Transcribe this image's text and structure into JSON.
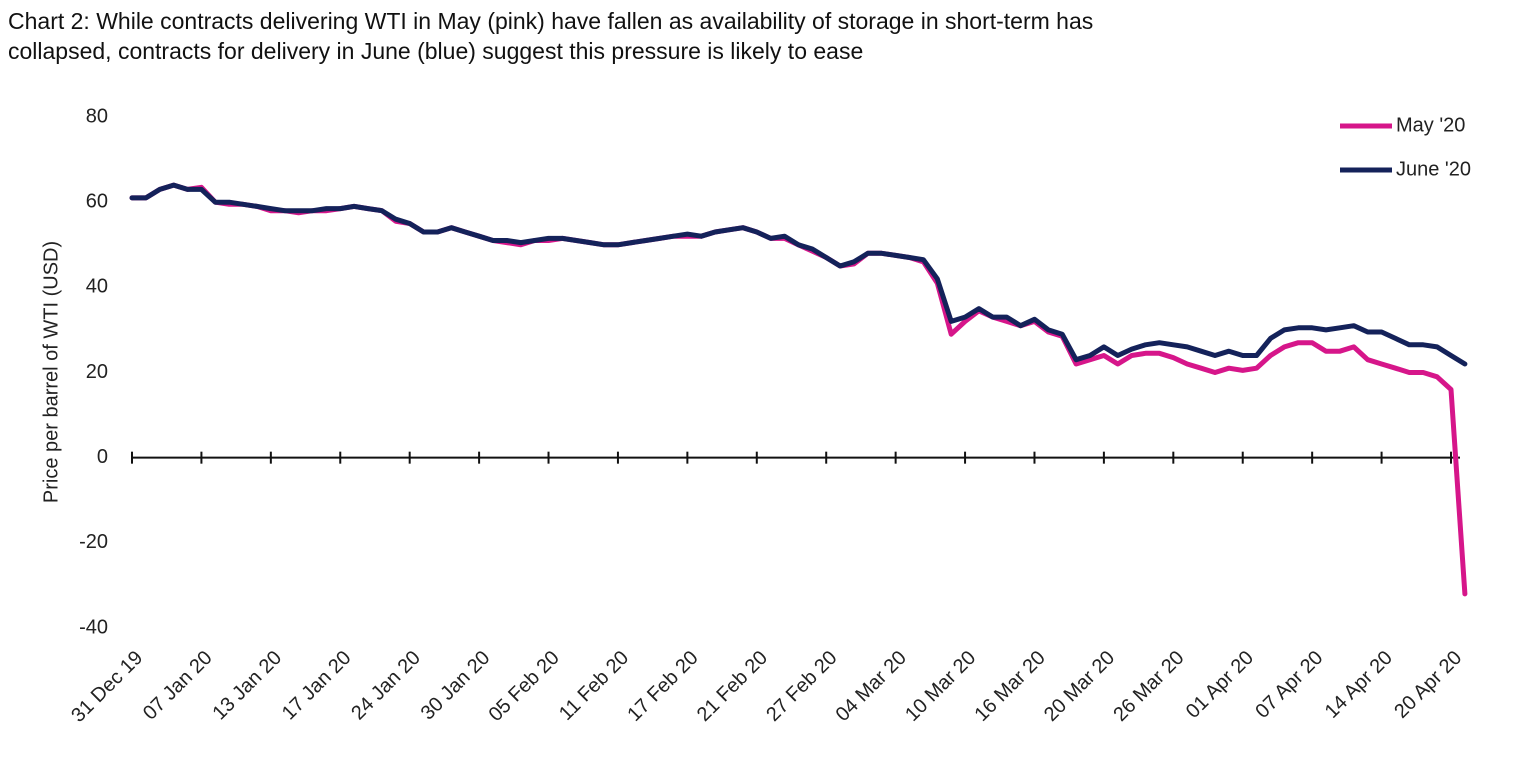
{
  "chart_data": {
    "type": "line",
    "title": "Chart 2: While contracts delivering WTI in May (pink) have fallen as availability of storage in short-term has collapsed, contracts for delivery in June (blue) suggest this pressure is likely to ease",
    "y_label": "Price per barrel of WTI (USD)",
    "categories": [
      "31 Dec 19",
      null,
      null,
      null,
      null,
      "07 Jan 20",
      null,
      null,
      null,
      null,
      "13 Jan 20",
      null,
      null,
      null,
      null,
      "17 Jan 20",
      null,
      null,
      null,
      null,
      "24 Jan 20",
      null,
      null,
      null,
      null,
      "30 Jan 20",
      null,
      null,
      null,
      null,
      "05 Feb 20",
      null,
      null,
      null,
      null,
      "11 Feb 20",
      null,
      null,
      null,
      null,
      "17 Feb 20",
      null,
      null,
      null,
      null,
      "21 Feb 20",
      null,
      null,
      null,
      null,
      "27 Feb 20",
      null,
      null,
      null,
      null,
      "04 Mar 20",
      null,
      null,
      null,
      null,
      "10 Mar 20",
      null,
      null,
      null,
      null,
      "16 Mar 20",
      null,
      null,
      null,
      null,
      "20 Mar 20",
      null,
      null,
      null,
      null,
      "26 Mar 20",
      null,
      null,
      null,
      null,
      "01 Apr 20",
      null,
      null,
      null,
      null,
      "07 Apr 20",
      null,
      null,
      null,
      null,
      "14 Apr 20",
      null,
      null,
      null,
      null,
      "20 Apr 20",
      null
    ],
    "series": [
      {
        "name": "May '20",
        "color": "#d6168a",
        "values": [
          61,
          61,
          63,
          64,
          63,
          63.5,
          60,
          59.5,
          59.5,
          59,
          58,
          58,
          57.5,
          58,
          58,
          58.5,
          59,
          58.5,
          58,
          55.5,
          55,
          53,
          53,
          54,
          53,
          52,
          51,
          50.5,
          50,
          51,
          51,
          51.5,
          51,
          50.5,
          50,
          50,
          50.5,
          51,
          51.5,
          52,
          52,
          52,
          53,
          53.5,
          54,
          53,
          51.5,
          51.5,
          50,
          48.5,
          47,
          45,
          45.5,
          48,
          48,
          47.5,
          47,
          46,
          41,
          29,
          32,
          34.5,
          33,
          32,
          31,
          32,
          29.5,
          28.5,
          22,
          23,
          24,
          22,
          24,
          24.5,
          24.5,
          23.5,
          22,
          21,
          20,
          21,
          20.5,
          21,
          24,
          26,
          27,
          27,
          25,
          25,
          26,
          23,
          22,
          21,
          20,
          20,
          19,
          16,
          -32
        ]
      },
      {
        "name": "June '20",
        "color": "#14225a",
        "values": [
          61,
          61,
          63,
          64,
          63,
          63,
          60,
          60,
          59.5,
          59,
          58.5,
          58,
          58,
          58,
          58.5,
          58.5,
          59,
          58.5,
          58,
          56,
          55,
          53,
          53,
          54,
          53,
          52,
          51,
          51,
          50.5,
          51,
          51.5,
          51.5,
          51,
          50.5,
          50,
          50,
          50.5,
          51,
          51.5,
          52,
          52.5,
          52,
          53,
          53.5,
          54,
          53,
          51.5,
          52,
          50,
          49,
          47,
          45,
          46,
          48,
          48,
          47.5,
          47,
          46.5,
          42,
          32,
          33,
          35,
          33,
          33,
          31,
          32.5,
          30,
          29,
          23,
          24,
          26,
          24,
          25.5,
          26.5,
          27,
          26.5,
          26,
          25,
          24,
          25,
          24,
          24,
          28,
          30,
          30.5,
          30.5,
          30,
          30.5,
          31,
          29.5,
          29.5,
          28,
          26.5,
          26.5,
          26,
          24,
          22
        ]
      }
    ],
    "ylim": [
      -40,
      80
    ],
    "yticks": [
      80,
      60,
      40,
      20,
      0,
      -20,
      -40
    ],
    "legend": "top-right"
  }
}
